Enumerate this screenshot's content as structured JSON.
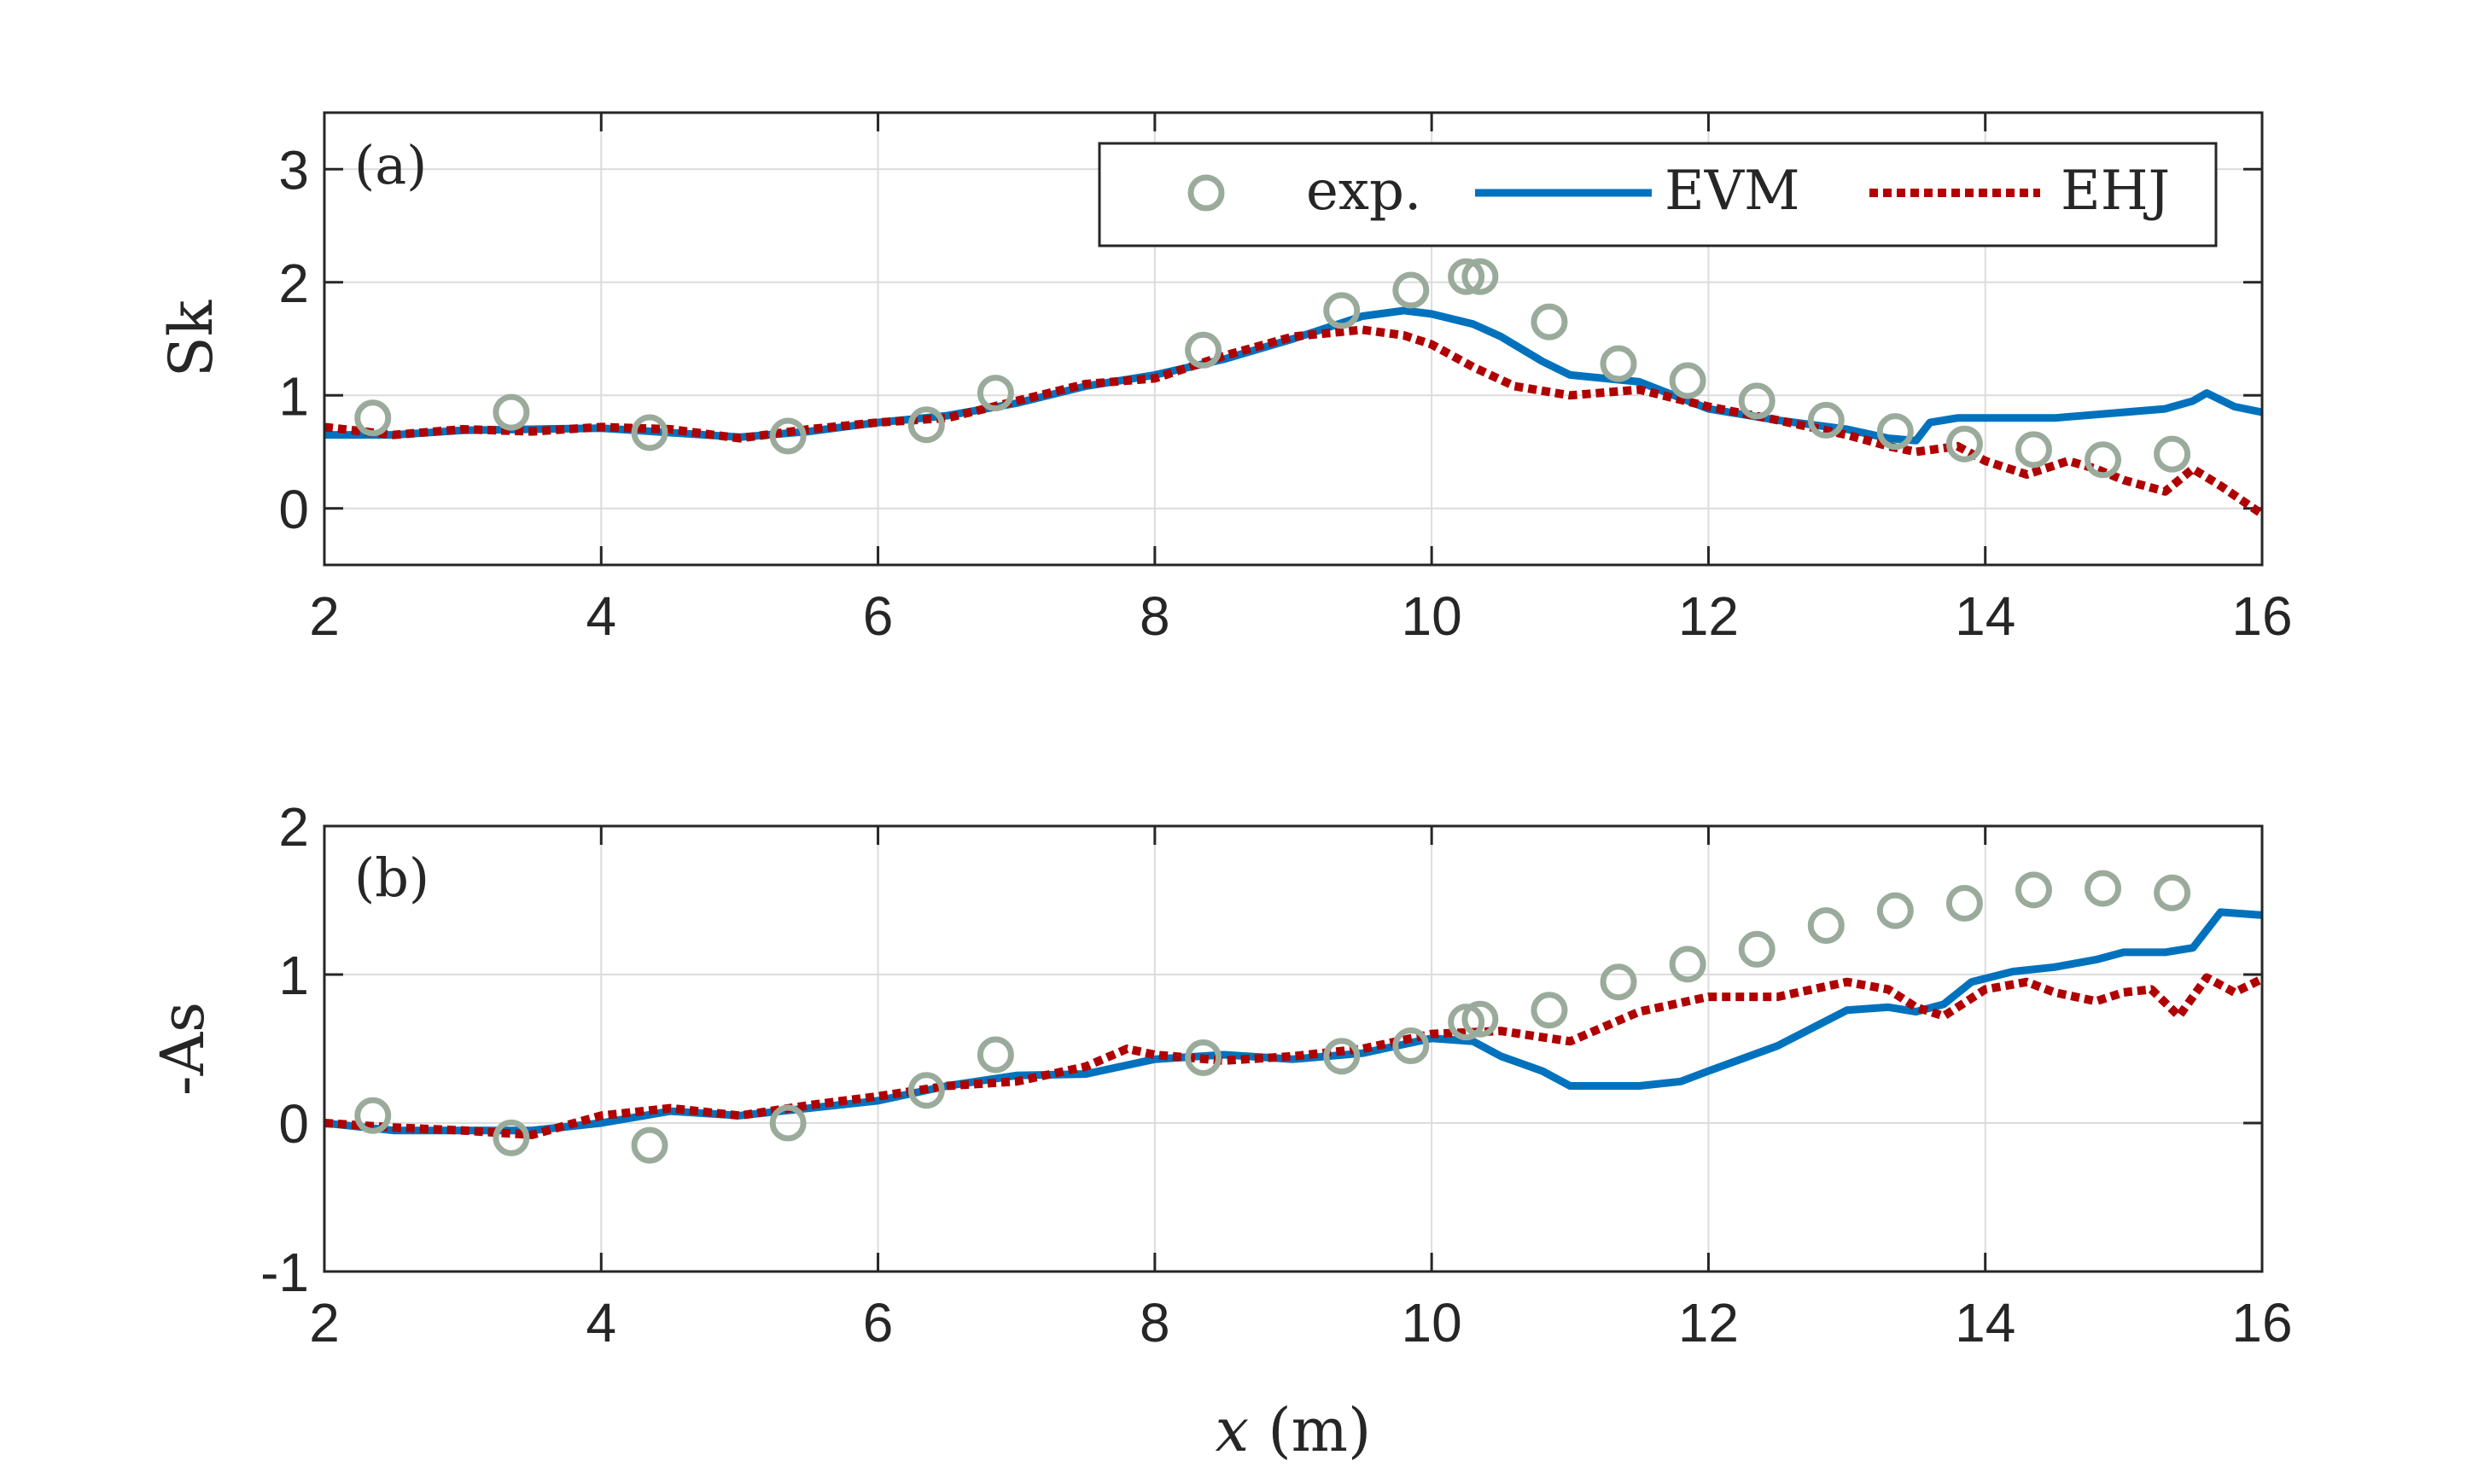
{
  "chart_data": [
    {
      "type": "line",
      "panel_label": "(a)",
      "ylabel": "Sk",
      "xlim": [
        2,
        16
      ],
      "ylim": [
        -0.5,
        3.5
      ],
      "xticks": [
        "2",
        "4",
        "6",
        "8",
        "10",
        "12",
        "14",
        "16"
      ],
      "yticks": [
        "0",
        "1",
        "2",
        "3"
      ],
      "grid": true,
      "legend": {
        "placement": "top-right",
        "entries": [
          "exp.",
          "EVM",
          "EHJ"
        ]
      },
      "series": [
        {
          "name": "exp.",
          "style": "markers",
          "color": "#9aab9c",
          "x": [
            2.35,
            3.35,
            4.35,
            5.35,
            6.35,
            6.85,
            8.35,
            9.35,
            9.85,
            10.25,
            10.35,
            10.85,
            11.35,
            11.85,
            12.35,
            12.85,
            13.35,
            13.85,
            14.35,
            14.85,
            15.35
          ],
          "y": [
            0.8,
            0.85,
            0.67,
            0.64,
            0.74,
            1.02,
            1.4,
            1.75,
            1.93,
            2.05,
            2.05,
            1.65,
            1.28,
            1.13,
            0.95,
            0.78,
            0.68,
            0.57,
            0.52,
            0.43,
            0.48
          ]
        },
        {
          "name": "EVM",
          "style": "solid",
          "color": "#0072bd",
          "x": [
            2.0,
            2.5,
            3.0,
            3.5,
            4.0,
            4.5,
            5.0,
            5.5,
            6.0,
            6.5,
            7.0,
            7.5,
            8.0,
            8.5,
            9.0,
            9.5,
            9.8,
            10.0,
            10.3,
            10.5,
            10.8,
            11.0,
            11.5,
            12.0,
            12.5,
            13.0,
            13.3,
            13.5,
            13.6,
            13.8,
            14.0,
            14.5,
            15.0,
            15.3,
            15.5,
            15.6,
            15.8,
            16.0
          ],
          "y": [
            0.65,
            0.65,
            0.69,
            0.7,
            0.71,
            0.67,
            0.63,
            0.68,
            0.76,
            0.82,
            0.93,
            1.08,
            1.18,
            1.32,
            1.5,
            1.7,
            1.75,
            1.72,
            1.63,
            1.52,
            1.3,
            1.18,
            1.12,
            0.88,
            0.78,
            0.7,
            0.62,
            0.6,
            0.76,
            0.8,
            0.8,
            0.8,
            0.85,
            0.88,
            0.95,
            1.02,
            0.9,
            0.85
          ]
        },
        {
          "name": "EHJ",
          "style": "dotted",
          "color": "#b00000",
          "x": [
            2.0,
            2.5,
            3.0,
            3.5,
            4.0,
            4.5,
            5.0,
            5.5,
            6.0,
            6.5,
            7.0,
            7.5,
            8.0,
            8.5,
            9.0,
            9.5,
            9.8,
            10.0,
            10.3,
            10.6,
            11.0,
            11.5,
            12.0,
            12.5,
            13.0,
            13.3,
            13.5,
            13.8,
            14.0,
            14.3,
            14.6,
            14.8,
            15.0,
            15.3,
            15.5,
            15.7,
            16.0
          ],
          "y": [
            0.72,
            0.65,
            0.7,
            0.68,
            0.72,
            0.7,
            0.62,
            0.7,
            0.76,
            0.8,
            0.95,
            1.1,
            1.15,
            1.35,
            1.52,
            1.58,
            1.53,
            1.45,
            1.25,
            1.08,
            1.0,
            1.05,
            0.9,
            0.78,
            0.65,
            0.55,
            0.5,
            0.55,
            0.42,
            0.3,
            0.42,
            0.35,
            0.25,
            0.15,
            0.35,
            0.2,
            -0.05
          ]
        }
      ]
    },
    {
      "type": "line",
      "panel_label": "(b)",
      "ylabel": "-As",
      "xlabel_var": "x",
      "xlabel_unit": " (m)",
      "xlim": [
        2,
        16
      ],
      "ylim": [
        -1,
        2
      ],
      "xticks": [
        "2",
        "4",
        "6",
        "8",
        "10",
        "12",
        "14",
        "16"
      ],
      "yticks": [
        "-1",
        "0",
        "1",
        "2"
      ],
      "grid": true,
      "series": [
        {
          "name": "exp.",
          "style": "markers",
          "color": "#9aab9c",
          "x": [
            2.35,
            3.35,
            4.35,
            5.35,
            6.35,
            6.85,
            8.35,
            9.35,
            9.85,
            10.25,
            10.35,
            10.85,
            11.35,
            11.85,
            12.35,
            12.85,
            13.35,
            13.85,
            14.35,
            14.85,
            15.35
          ],
          "y": [
            0.05,
            -0.1,
            -0.15,
            0.0,
            0.22,
            0.46,
            0.44,
            0.45,
            0.52,
            0.68,
            0.7,
            0.76,
            0.95,
            1.07,
            1.17,
            1.33,
            1.43,
            1.48,
            1.57,
            1.58,
            1.55
          ]
        },
        {
          "name": "EVM",
          "style": "solid",
          "color": "#0072bd",
          "x": [
            2.0,
            2.5,
            3.0,
            3.5,
            4.0,
            4.5,
            5.0,
            5.5,
            6.0,
            6.5,
            7.0,
            7.5,
            8.0,
            8.5,
            9.0,
            9.5,
            10.0,
            10.3,
            10.5,
            10.8,
            11.0,
            11.3,
            11.5,
            11.8,
            12.0,
            12.5,
            13.0,
            13.3,
            13.5,
            13.7,
            13.9,
            14.2,
            14.5,
            14.8,
            15.0,
            15.3,
            15.5,
            15.7,
            16.0
          ],
          "y": [
            0.0,
            -0.05,
            -0.05,
            -0.05,
            0.0,
            0.08,
            0.05,
            0.1,
            0.15,
            0.25,
            0.32,
            0.33,
            0.43,
            0.46,
            0.43,
            0.47,
            0.57,
            0.55,
            0.45,
            0.35,
            0.25,
            0.25,
            0.25,
            0.28,
            0.35,
            0.52,
            0.76,
            0.78,
            0.75,
            0.8,
            0.95,
            1.02,
            1.05,
            1.1,
            1.15,
            1.15,
            1.18,
            1.42,
            1.4
          ]
        },
        {
          "name": "EHJ",
          "style": "dotted",
          "color": "#b00000",
          "x": [
            2.0,
            2.5,
            3.0,
            3.5,
            4.0,
            4.5,
            5.0,
            5.5,
            6.0,
            6.5,
            7.0,
            7.5,
            7.8,
            8.0,
            8.5,
            9.0,
            9.5,
            10.0,
            10.5,
            11.0,
            11.5,
            12.0,
            12.5,
            13.0,
            13.3,
            13.5,
            13.7,
            14.0,
            14.3,
            14.5,
            14.8,
            15.0,
            15.2,
            15.4,
            15.6,
            15.8,
            16.0
          ],
          "y": [
            0.0,
            -0.03,
            -0.05,
            -0.08,
            0.05,
            0.1,
            0.05,
            0.12,
            0.18,
            0.25,
            0.28,
            0.38,
            0.5,
            0.46,
            0.42,
            0.45,
            0.5,
            0.6,
            0.62,
            0.55,
            0.75,
            0.85,
            0.85,
            0.95,
            0.9,
            0.78,
            0.72,
            0.9,
            0.95,
            0.88,
            0.82,
            0.88,
            0.9,
            0.72,
            0.98,
            0.88,
            0.97
          ]
        }
      ]
    }
  ]
}
